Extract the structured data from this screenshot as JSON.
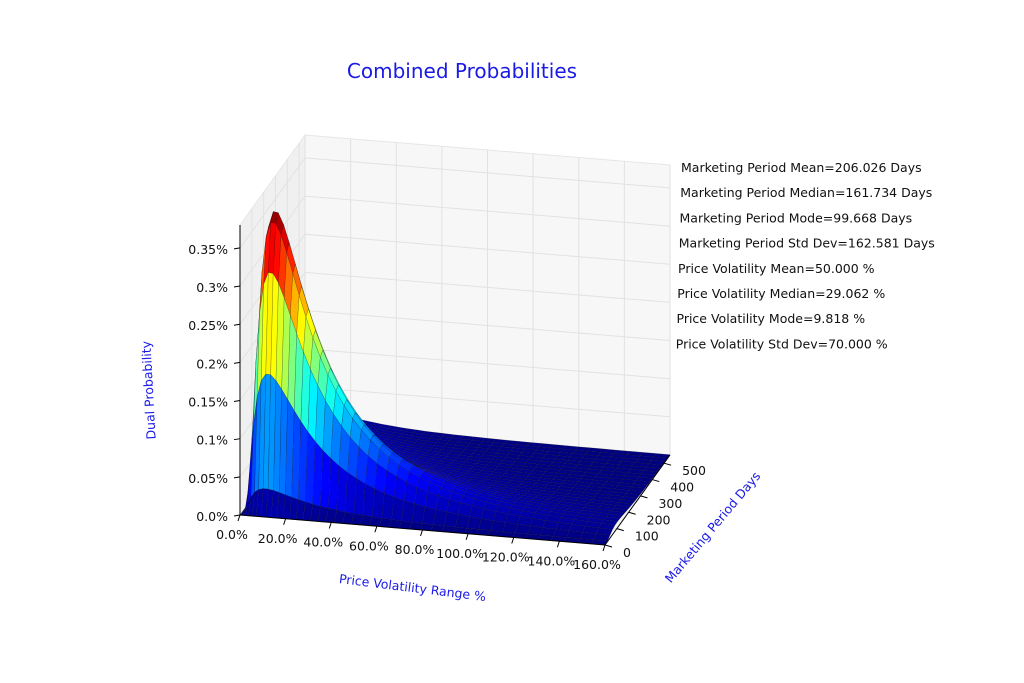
{
  "chart_data": {
    "type": "surface3d",
    "title": "Combined Probabilities",
    "xlabel": "Price Volatility Range %",
    "ylabel": "Marketing Period Days",
    "zlabel": "Dual Probability",
    "x_ticks": [
      "0.0%",
      "20.0%",
      "40.0%",
      "60.0%",
      "80.0%",
      "100.0%",
      "120.0%",
      "140.0%",
      "160.0%"
    ],
    "y_ticks": [
      "0",
      "100",
      "200",
      "300",
      "400",
      "500"
    ],
    "z_ticks": [
      "0.0%",
      "0.05%",
      "0.1%",
      "0.15%",
      "0.2%",
      "0.25%",
      "0.3%",
      "0.35%"
    ],
    "xlim": [
      0,
      160
    ],
    "ylim": [
      0,
      550
    ],
    "zlim": [
      0,
      0.38
    ],
    "z_peak": 0.38,
    "colormap": [
      "#00007f",
      "#0000ff",
      "#007fff",
      "#00ffff",
      "#7fff7f",
      "#ffff00",
      "#ff7f00",
      "#ff0000",
      "#7f0000"
    ],
    "stats": [
      "Marketing Period Mean=206.026 Days",
      "Marketing Period Median=161.734 Days",
      "Marketing Period Mode=99.668 Days",
      "Marketing Period Std Dev=162.581 Days",
      "Price Volatility Mean=50.000 %",
      "Price Volatility Median=29.062 %",
      "Price Volatility Mode=9.818 %",
      "Price Volatility Std Dev=70.000 %"
    ]
  }
}
